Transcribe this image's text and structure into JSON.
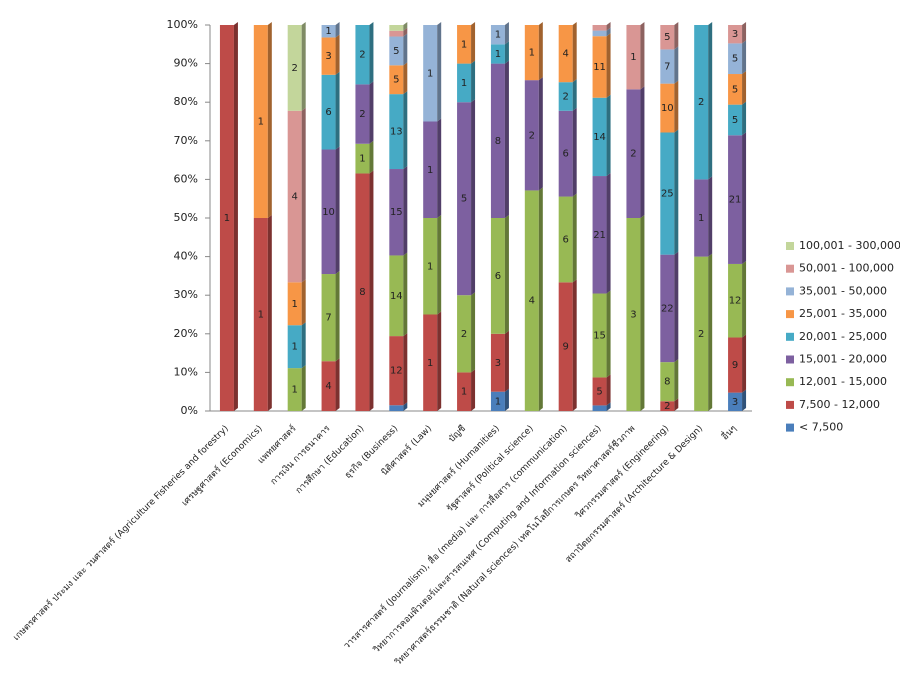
{
  "chart_data": {
    "type": "bar",
    "stack": "percent",
    "categories": [
      "เกษตรศาสตร์ ประมง และ วนศาสตร์ (Agriculture Fisheries and forestry)",
      "เศรษฐศาสตร์ (Economics)",
      "แพทยศาสตร์",
      "การเงิน การธนาคาร",
      "การศึกษา (Education)",
      "ธุรกิจ (Business)",
      "นิติศาสตร์ (Law)",
      "บัญชี",
      "มนุษยศาสตร์ (Humanities)",
      "รัฐศาสตร์ (Political science)",
      "วารสารศาสตร์ (Journalism), สื่อ (media) และ การสื่อสาร (communication)",
      "วิทยาการคอมพิวเตอร์และสารสนเทศ (Computing and Information sciences)",
      "วิทยาศาสตร์ธรรมชาติ (Natural sciences) เทคโนโลยีการเกษตร วิทยาศาสตร์ชีวภาพ",
      "วิศวกรรมศาสตร์ (Engineering)",
      "สถาปัตยกรรมศาสตร์ (Architecture & Design)",
      "อื่นๆ"
    ],
    "series": [
      {
        "name": "< 7,500",
        "color": "#4a7ebb",
        "values": [
          null,
          null,
          null,
          null,
          null,
          1,
          null,
          null,
          1,
          null,
          null,
          1,
          null,
          null,
          null,
          3
        ]
      },
      {
        "name": "7,500 - 12,000",
        "color": "#be4b48",
        "values": [
          1,
          1,
          null,
          4,
          8,
          12,
          1,
          1,
          3,
          null,
          9,
          5,
          null,
          2,
          null,
          9
        ]
      },
      {
        "name": "12,001 - 15,000",
        "color": "#98b954",
        "values": [
          null,
          null,
          1,
          7,
          1,
          14,
          1,
          2,
          6,
          4,
          6,
          15,
          3,
          8,
          2,
          12
        ]
      },
      {
        "name": "15,001 - 20,000",
        "color": "#7d60a0",
        "values": [
          null,
          null,
          null,
          10,
          2,
          15,
          1,
          5,
          8,
          2,
          6,
          21,
          2,
          22,
          1,
          21
        ]
      },
      {
        "name": "20,001 - 25,000",
        "color": "#46aac5",
        "values": [
          null,
          null,
          1,
          6,
          2,
          13,
          null,
          1,
          1,
          null,
          2,
          14,
          null,
          25,
          2,
          5
        ]
      },
      {
        "name": "25,001 - 35,000",
        "color": "#f79646",
        "values": [
          null,
          1,
          1,
          3,
          null,
          5,
          null,
          1,
          null,
          1,
          4,
          11,
          null,
          10,
          null,
          5
        ]
      },
      {
        "name": "35,001 - 50,000",
        "color": "#95b3d7",
        "values": [
          null,
          null,
          null,
          1,
          null,
          5,
          1,
          null,
          1,
          null,
          null,
          1,
          null,
          7,
          null,
          5
        ]
      },
      {
        "name": "50,001 - 100,000",
        "color": "#d99694",
        "values": [
          null,
          null,
          4,
          null,
          null,
          1,
          null,
          null,
          null,
          null,
          null,
          1,
          1,
          5,
          null,
          3
        ]
      },
      {
        "name": "100,001 - 300,000",
        "color": "#c3d69b",
        "values": [
          null,
          null,
          2,
          null,
          null,
          1,
          null,
          null,
          null,
          null,
          null,
          null,
          null,
          null,
          null,
          null
        ]
      }
    ],
    "ylim": [
      0,
      100
    ],
    "yticks": [
      {
        "value": 0,
        "label": "0%"
      },
      {
        "value": 10,
        "label": "10%"
      },
      {
        "value": 20,
        "label": "20%"
      },
      {
        "value": 30,
        "label": "30%"
      },
      {
        "value": 40,
        "label": "40%"
      },
      {
        "value": 50,
        "label": "50%"
      },
      {
        "value": 60,
        "label": "60%"
      },
      {
        "value": 70,
        "label": "70%"
      },
      {
        "value": 80,
        "label": "80%"
      },
      {
        "value": 90,
        "label": "90%"
      },
      {
        "value": 100,
        "label": "100%"
      }
    ],
    "grid": false,
    "legend": "right"
  }
}
